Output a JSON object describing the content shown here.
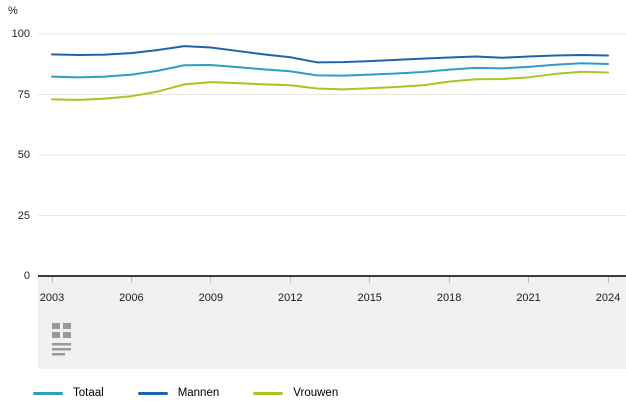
{
  "chart": {
    "unit": "%"
  },
  "icons": {
    "table_icon_color": "#97999b"
  },
  "chart_data": {
    "type": "line",
    "title": "",
    "xlabel": "",
    "ylabel": "%",
    "ylim": [
      0,
      100
    ],
    "yticks": [
      0,
      25,
      50,
      75,
      100
    ],
    "xticks": [
      2003,
      2006,
      2009,
      2012,
      2015,
      2018,
      2021,
      2024
    ],
    "grid": true,
    "legend_position": "bottom",
    "x": [
      2003,
      2004,
      2005,
      2006,
      2007,
      2008,
      2009,
      2010,
      2011,
      2012,
      2013,
      2014,
      2015,
      2016,
      2017,
      2018,
      2019,
      2020,
      2021,
      2022,
      2023,
      2024
    ],
    "series": [
      {
        "name": "Totaal",
        "color": "#2d9fc5",
        "values": [
          82.4,
          82.1,
          82.4,
          83.2,
          84.8,
          87.1,
          87.2,
          86.3,
          85.4,
          84.6,
          82.9,
          82.8,
          83.2,
          83.7,
          84.3,
          85.3,
          86.0,
          85.8,
          86.4,
          87.3,
          87.9,
          87.6
        ]
      },
      {
        "name": "Mannen",
        "color": "#1e64ac",
        "values": [
          91.6,
          91.3,
          91.5,
          92.1,
          93.4,
          95.0,
          94.4,
          93.0,
          91.6,
          90.4,
          88.3,
          88.4,
          88.8,
          89.3,
          89.8,
          90.3,
          90.7,
          90.2,
          90.7,
          91.1,
          91.3,
          91.1
        ]
      },
      {
        "name": "Vrouwen",
        "color": "#a6c623",
        "values": [
          73.0,
          72.8,
          73.3,
          74.3,
          76.2,
          79.2,
          80.1,
          79.7,
          79.2,
          78.8,
          77.5,
          77.1,
          77.6,
          78.1,
          78.8,
          80.3,
          81.3,
          81.4,
          82.1,
          83.5,
          84.4,
          84.1
        ]
      }
    ],
    "colors": {
      "gridline": "#e5e5e5",
      "axis_line": "#3c3c3c",
      "band_background": "#f1f1f1",
      "tick_mark": "#bdbdbd"
    }
  }
}
